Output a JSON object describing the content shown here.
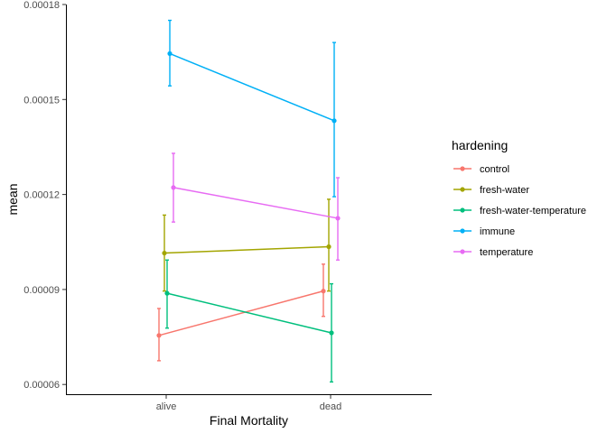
{
  "chart_data": {
    "type": "line",
    "xlabel": "Final Mortality",
    "ylabel": "mean",
    "categories": [
      "alive",
      "dead"
    ],
    "ylim": [
      5.55e-05,
      0.00018
    ],
    "yticks": [
      "0.00006",
      "0.00009",
      "0.00012",
      "0.00015",
      "0.00018"
    ],
    "grid": false,
    "legend": {
      "title": "hardening",
      "placement": "right"
    },
    "error_bars": true,
    "series": [
      {
        "name": "control",
        "color": "#F8766D",
        "values": [
          7.55e-05,
          8.95e-05
        ],
        "lower": [
          6.75e-05,
          8.15e-05
        ],
        "upper": [
          8.4e-05,
          9.8e-05
        ]
      },
      {
        "name": "fresh-water",
        "color": "#A3A500",
        "values": [
          0.0001015,
          0.0001035
        ],
        "lower": [
          8.95e-05,
          8.95e-05
        ],
        "upper": [
          0.0001135,
          0.0001185
        ]
      },
      {
        "name": "fresh-water-temperature",
        "color": "#00BF7D",
        "values": [
          8.88e-05,
          7.63e-05
        ],
        "lower": [
          7.78e-05,
          6.08e-05
        ],
        "upper": [
          9.93e-05,
          9.18e-05
        ]
      },
      {
        "name": "immune",
        "color": "#00B0F6",
        "values": [
          0.0001645,
          0.0001433
        ],
        "lower": [
          0.0001543,
          0.0001193
        ],
        "upper": [
          0.000175,
          0.000168
        ]
      },
      {
        "name": "temperature",
        "color": "#E76BF3",
        "values": [
          0.0001222,
          0.0001125
        ],
        "lower": [
          0.0001113,
          9.93e-05
        ],
        "upper": [
          0.000133,
          0.0001253
        ]
      }
    ]
  }
}
